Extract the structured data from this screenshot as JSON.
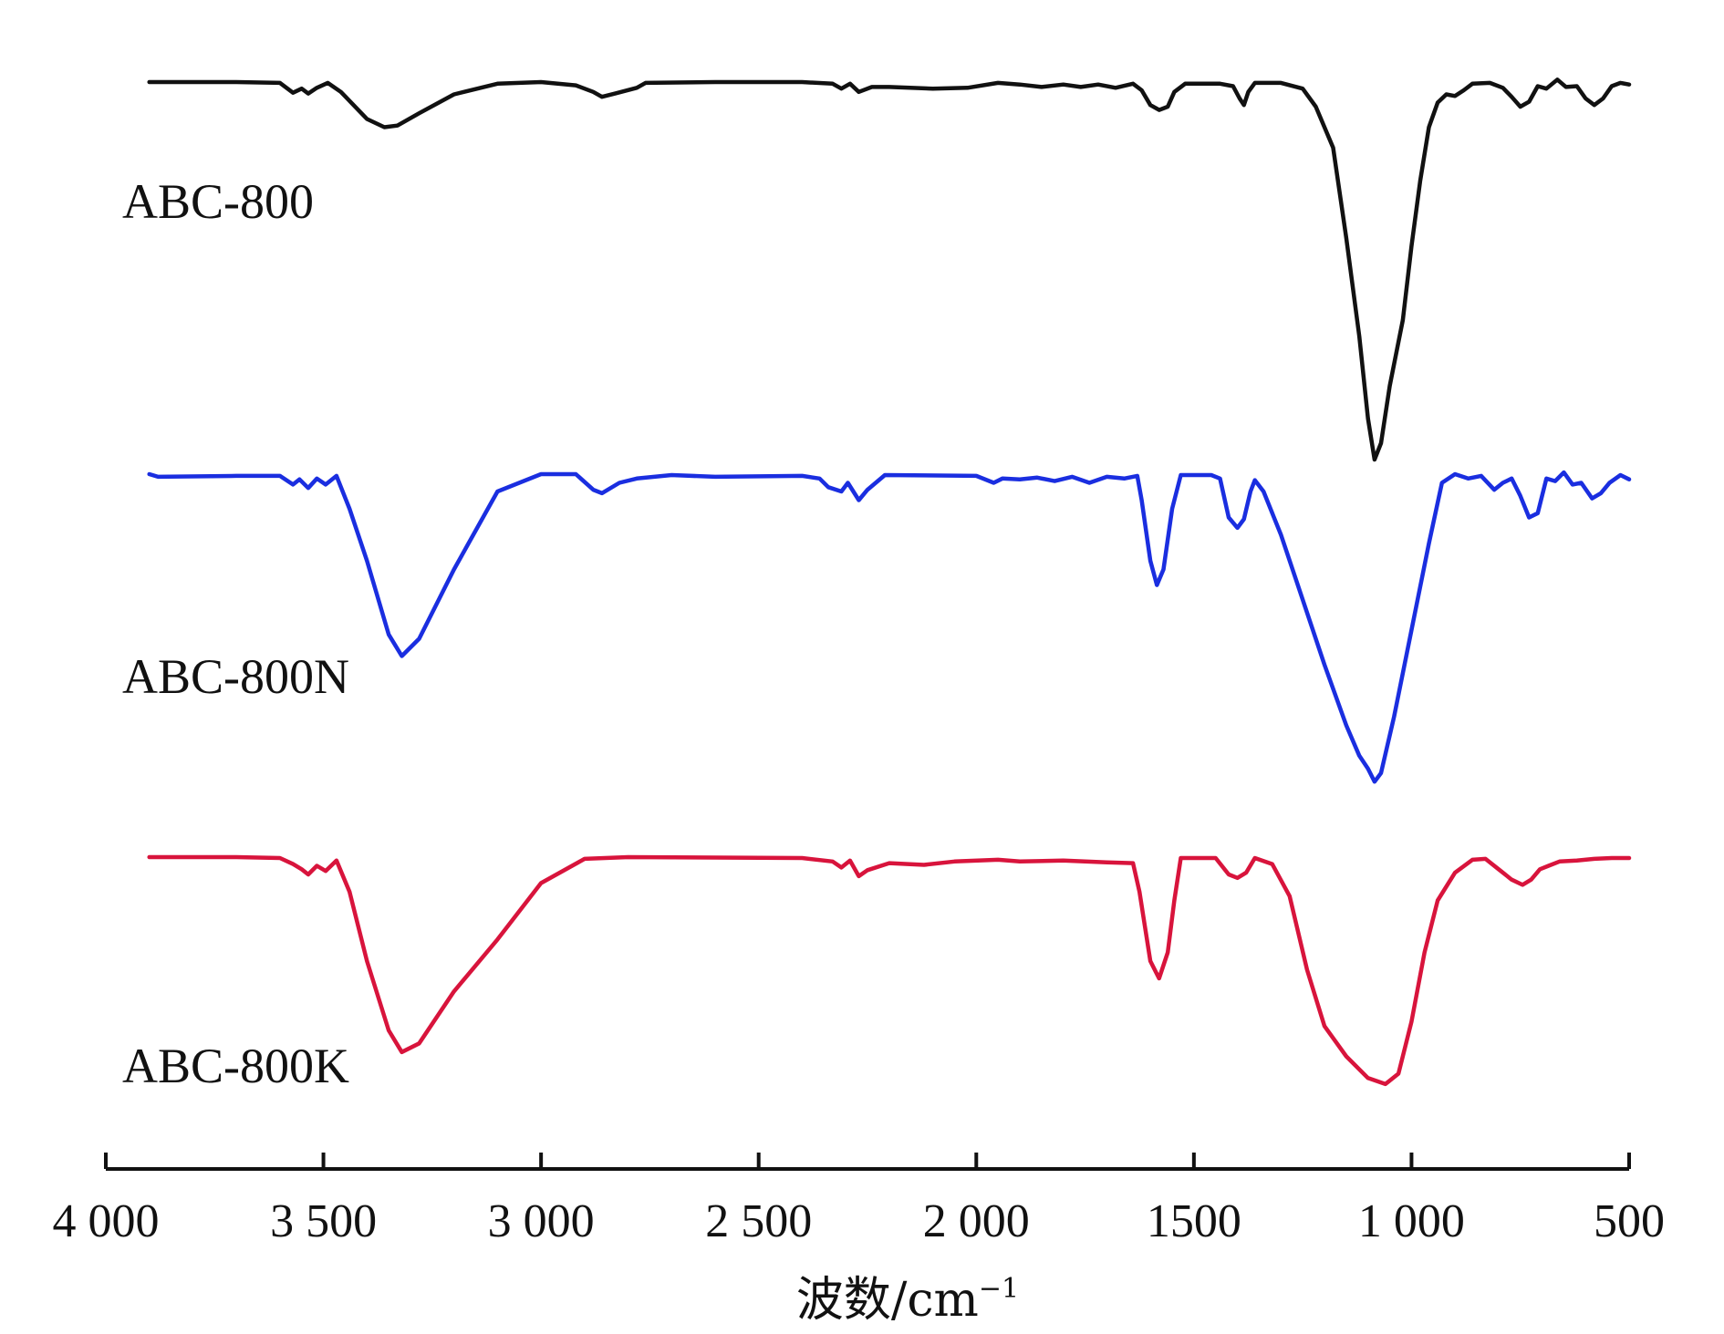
{
  "chart_data": {
    "type": "line",
    "title": "",
    "xlabel": "波数/cm",
    "xlabel_sup": "−1",
    "ylabel": "",
    "xlim": [
      4000,
      500
    ],
    "x_reversed": true,
    "x_ticks": [
      4000,
      3500,
      3000,
      2500,
      2000,
      1500,
      1000,
      500
    ],
    "x_tick_labels": [
      "4 000",
      "3 500",
      "3 000",
      "2 500",
      "2 000",
      "1500",
      "1 000",
      "500"
    ],
    "y_units": "relative transmittance (offset, stacked)",
    "grid": false,
    "legend": "none",
    "series": [
      {
        "name": "ABC-800",
        "color": "#111111",
        "points": [
          [
            3900,
            1.0
          ],
          [
            3700,
            1.0
          ],
          [
            3600,
            0.99
          ],
          [
            3570,
            0.87
          ],
          [
            3550,
            0.92
          ],
          [
            3535,
            0.86
          ],
          [
            3515,
            0.93
          ],
          [
            3490,
            0.99
          ],
          [
            3460,
            0.88
          ],
          [
            3400,
            0.55
          ],
          [
            3360,
            0.45
          ],
          [
            3330,
            0.47
          ],
          [
            3280,
            0.62
          ],
          [
            3200,
            0.85
          ],
          [
            3100,
            0.98
          ],
          [
            3000,
            1.0
          ],
          [
            2920,
            0.96
          ],
          [
            2880,
            0.88
          ],
          [
            2860,
            0.82
          ],
          [
            2830,
            0.86
          ],
          [
            2780,
            0.93
          ],
          [
            2760,
            0.99
          ],
          [
            2600,
            1.0
          ],
          [
            2400,
            1.0
          ],
          [
            2330,
            0.98
          ],
          [
            2310,
            0.92
          ],
          [
            2290,
            0.98
          ],
          [
            2270,
            0.88
          ],
          [
            2240,
            0.94
          ],
          [
            2200,
            0.94
          ],
          [
            2100,
            0.92
          ],
          [
            2020,
            0.93
          ],
          [
            1950,
            0.99
          ],
          [
            1900,
            0.97
          ],
          [
            1850,
            0.94
          ],
          [
            1800,
            0.97
          ],
          [
            1760,
            0.94
          ],
          [
            1720,
            0.97
          ],
          [
            1680,
            0.93
          ],
          [
            1640,
            0.98
          ],
          [
            1620,
            0.9
          ],
          [
            1600,
            0.72
          ],
          [
            1580,
            0.66
          ],
          [
            1560,
            0.7
          ],
          [
            1545,
            0.88
          ],
          [
            1520,
            0.98
          ],
          [
            1440,
            0.98
          ],
          [
            1410,
            0.95
          ],
          [
            1395,
            0.8
          ],
          [
            1385,
            0.72
          ],
          [
            1375,
            0.88
          ],
          [
            1360,
            0.99
          ],
          [
            1300,
            0.99
          ],
          [
            1250,
            0.92
          ],
          [
            1220,
            0.7
          ],
          [
            1180,
            0.2
          ],
          [
            1150,
            -0.9
          ],
          [
            1120,
            -2.1
          ],
          [
            1100,
            -3.1
          ],
          [
            1085,
            -3.6
          ],
          [
            1070,
            -3.4
          ],
          [
            1050,
            -2.7
          ],
          [
            1020,
            -1.9
          ],
          [
            1000,
            -1.0
          ],
          [
            980,
            -0.2
          ],
          [
            960,
            0.45
          ],
          [
            940,
            0.75
          ],
          [
            920,
            0.85
          ],
          [
            900,
            0.83
          ],
          [
            880,
            0.9
          ],
          [
            860,
            0.98
          ],
          [
            820,
            0.99
          ],
          [
            790,
            0.93
          ],
          [
            770,
            0.82
          ],
          [
            750,
            0.7
          ],
          [
            730,
            0.76
          ],
          [
            710,
            0.95
          ],
          [
            690,
            0.92
          ],
          [
            665,
            1.03
          ],
          [
            645,
            0.94
          ],
          [
            620,
            0.95
          ],
          [
            600,
            0.8
          ],
          [
            580,
            0.72
          ],
          [
            560,
            0.8
          ],
          [
            540,
            0.95
          ],
          [
            520,
            0.99
          ],
          [
            500,
            0.97
          ]
        ]
      },
      {
        "name": "ABC-800N",
        "color": "#1a2ee0",
        "points": [
          [
            3900,
            1.0
          ],
          [
            3880,
            0.97
          ],
          [
            3700,
            0.98
          ],
          [
            3600,
            0.98
          ],
          [
            3570,
            0.88
          ],
          [
            3555,
            0.94
          ],
          [
            3535,
            0.84
          ],
          [
            3515,
            0.95
          ],
          [
            3495,
            0.88
          ],
          [
            3470,
            0.98
          ],
          [
            3440,
            0.6
          ],
          [
            3400,
            0.0
          ],
          [
            3350,
            -0.85
          ],
          [
            3320,
            -1.1
          ],
          [
            3280,
            -0.9
          ],
          [
            3200,
            -0.1
          ],
          [
            3100,
            0.8
          ],
          [
            3000,
            1.0
          ],
          [
            2920,
            1.0
          ],
          [
            2880,
            0.82
          ],
          [
            2860,
            0.78
          ],
          [
            2820,
            0.9
          ],
          [
            2780,
            0.95
          ],
          [
            2700,
            0.99
          ],
          [
            2600,
            0.97
          ],
          [
            2400,
            0.98
          ],
          [
            2360,
            0.95
          ],
          [
            2340,
            0.85
          ],
          [
            2310,
            0.8
          ],
          [
            2295,
            0.9
          ],
          [
            2270,
            0.7
          ],
          [
            2250,
            0.82
          ],
          [
            2210,
            0.99
          ],
          [
            2000,
            0.98
          ],
          [
            1960,
            0.9
          ],
          [
            1940,
            0.95
          ],
          [
            1900,
            0.94
          ],
          [
            1860,
            0.96
          ],
          [
            1820,
            0.92
          ],
          [
            1780,
            0.97
          ],
          [
            1740,
            0.9
          ],
          [
            1700,
            0.97
          ],
          [
            1660,
            0.95
          ],
          [
            1630,
            0.98
          ],
          [
            1620,
            0.7
          ],
          [
            1600,
            0.0
          ],
          [
            1585,
            -0.28
          ],
          [
            1570,
            -0.1
          ],
          [
            1550,
            0.6
          ],
          [
            1530,
            0.99
          ],
          [
            1460,
            0.99
          ],
          [
            1440,
            0.95
          ],
          [
            1420,
            0.5
          ],
          [
            1400,
            0.38
          ],
          [
            1385,
            0.48
          ],
          [
            1370,
            0.8
          ],
          [
            1360,
            0.93
          ],
          [
            1340,
            0.8
          ],
          [
            1300,
            0.3
          ],
          [
            1260,
            -0.3
          ],
          [
            1200,
            -1.2
          ],
          [
            1150,
            -1.9
          ],
          [
            1120,
            -2.25
          ],
          [
            1100,
            -2.4
          ],
          [
            1085,
            -2.55
          ],
          [
            1070,
            -2.45
          ],
          [
            1040,
            -1.8
          ],
          [
            1000,
            -0.8
          ],
          [
            960,
            0.2
          ],
          [
            930,
            0.9
          ],
          [
            900,
            1.0
          ],
          [
            870,
            0.95
          ],
          [
            840,
            0.98
          ],
          [
            810,
            0.82
          ],
          [
            790,
            0.9
          ],
          [
            770,
            0.95
          ],
          [
            750,
            0.75
          ],
          [
            730,
            0.5
          ],
          [
            710,
            0.55
          ],
          [
            690,
            0.95
          ],
          [
            670,
            0.92
          ],
          [
            650,
            1.02
          ],
          [
            630,
            0.88
          ],
          [
            610,
            0.9
          ],
          [
            585,
            0.72
          ],
          [
            565,
            0.78
          ],
          [
            545,
            0.9
          ],
          [
            520,
            0.99
          ],
          [
            500,
            0.94
          ]
        ]
      },
      {
        "name": "ABC-800K",
        "color": "#d8143c",
        "points": [
          [
            3900,
            1.0
          ],
          [
            3700,
            1.0
          ],
          [
            3600,
            0.99
          ],
          [
            3570,
            0.92
          ],
          [
            3550,
            0.86
          ],
          [
            3535,
            0.8
          ],
          [
            3515,
            0.9
          ],
          [
            3495,
            0.84
          ],
          [
            3470,
            0.96
          ],
          [
            3440,
            0.6
          ],
          [
            3400,
            -0.2
          ],
          [
            3350,
            -1.0
          ],
          [
            3320,
            -1.25
          ],
          [
            3280,
            -1.15
          ],
          [
            3200,
            -0.55
          ],
          [
            3100,
            0.05
          ],
          [
            3000,
            0.7
          ],
          [
            2900,
            0.98
          ],
          [
            2800,
            1.0
          ],
          [
            2400,
            0.99
          ],
          [
            2330,
            0.95
          ],
          [
            2310,
            0.88
          ],
          [
            2290,
            0.96
          ],
          [
            2270,
            0.78
          ],
          [
            2250,
            0.85
          ],
          [
            2200,
            0.93
          ],
          [
            2120,
            0.91
          ],
          [
            2050,
            0.95
          ],
          [
            1950,
            0.97
          ],
          [
            1900,
            0.95
          ],
          [
            1800,
            0.96
          ],
          [
            1700,
            0.94
          ],
          [
            1640,
            0.93
          ],
          [
            1625,
            0.6
          ],
          [
            1600,
            -0.2
          ],
          [
            1580,
            -0.4
          ],
          [
            1560,
            -0.1
          ],
          [
            1545,
            0.5
          ],
          [
            1530,
            0.99
          ],
          [
            1450,
            0.99
          ],
          [
            1420,
            0.8
          ],
          [
            1400,
            0.76
          ],
          [
            1380,
            0.82
          ],
          [
            1360,
            0.99
          ],
          [
            1320,
            0.92
          ],
          [
            1280,
            0.55
          ],
          [
            1240,
            -0.3
          ],
          [
            1200,
            -0.95
          ],
          [
            1150,
            -1.3
          ],
          [
            1100,
            -1.55
          ],
          [
            1060,
            -1.62
          ],
          [
            1030,
            -1.5
          ],
          [
            1000,
            -0.9
          ],
          [
            970,
            -0.1
          ],
          [
            940,
            0.5
          ],
          [
            900,
            0.82
          ],
          [
            860,
            0.97
          ],
          [
            830,
            0.98
          ],
          [
            800,
            0.86
          ],
          [
            770,
            0.74
          ],
          [
            745,
            0.68
          ],
          [
            725,
            0.74
          ],
          [
            705,
            0.86
          ],
          [
            685,
            0.9
          ],
          [
            660,
            0.95
          ],
          [
            620,
            0.96
          ],
          [
            580,
            0.98
          ],
          [
            540,
            0.99
          ],
          [
            500,
            0.99
          ]
        ]
      }
    ],
    "series_label_texts": [
      "ABC-800",
      "ABC-800N",
      "ABC-800K"
    ]
  }
}
